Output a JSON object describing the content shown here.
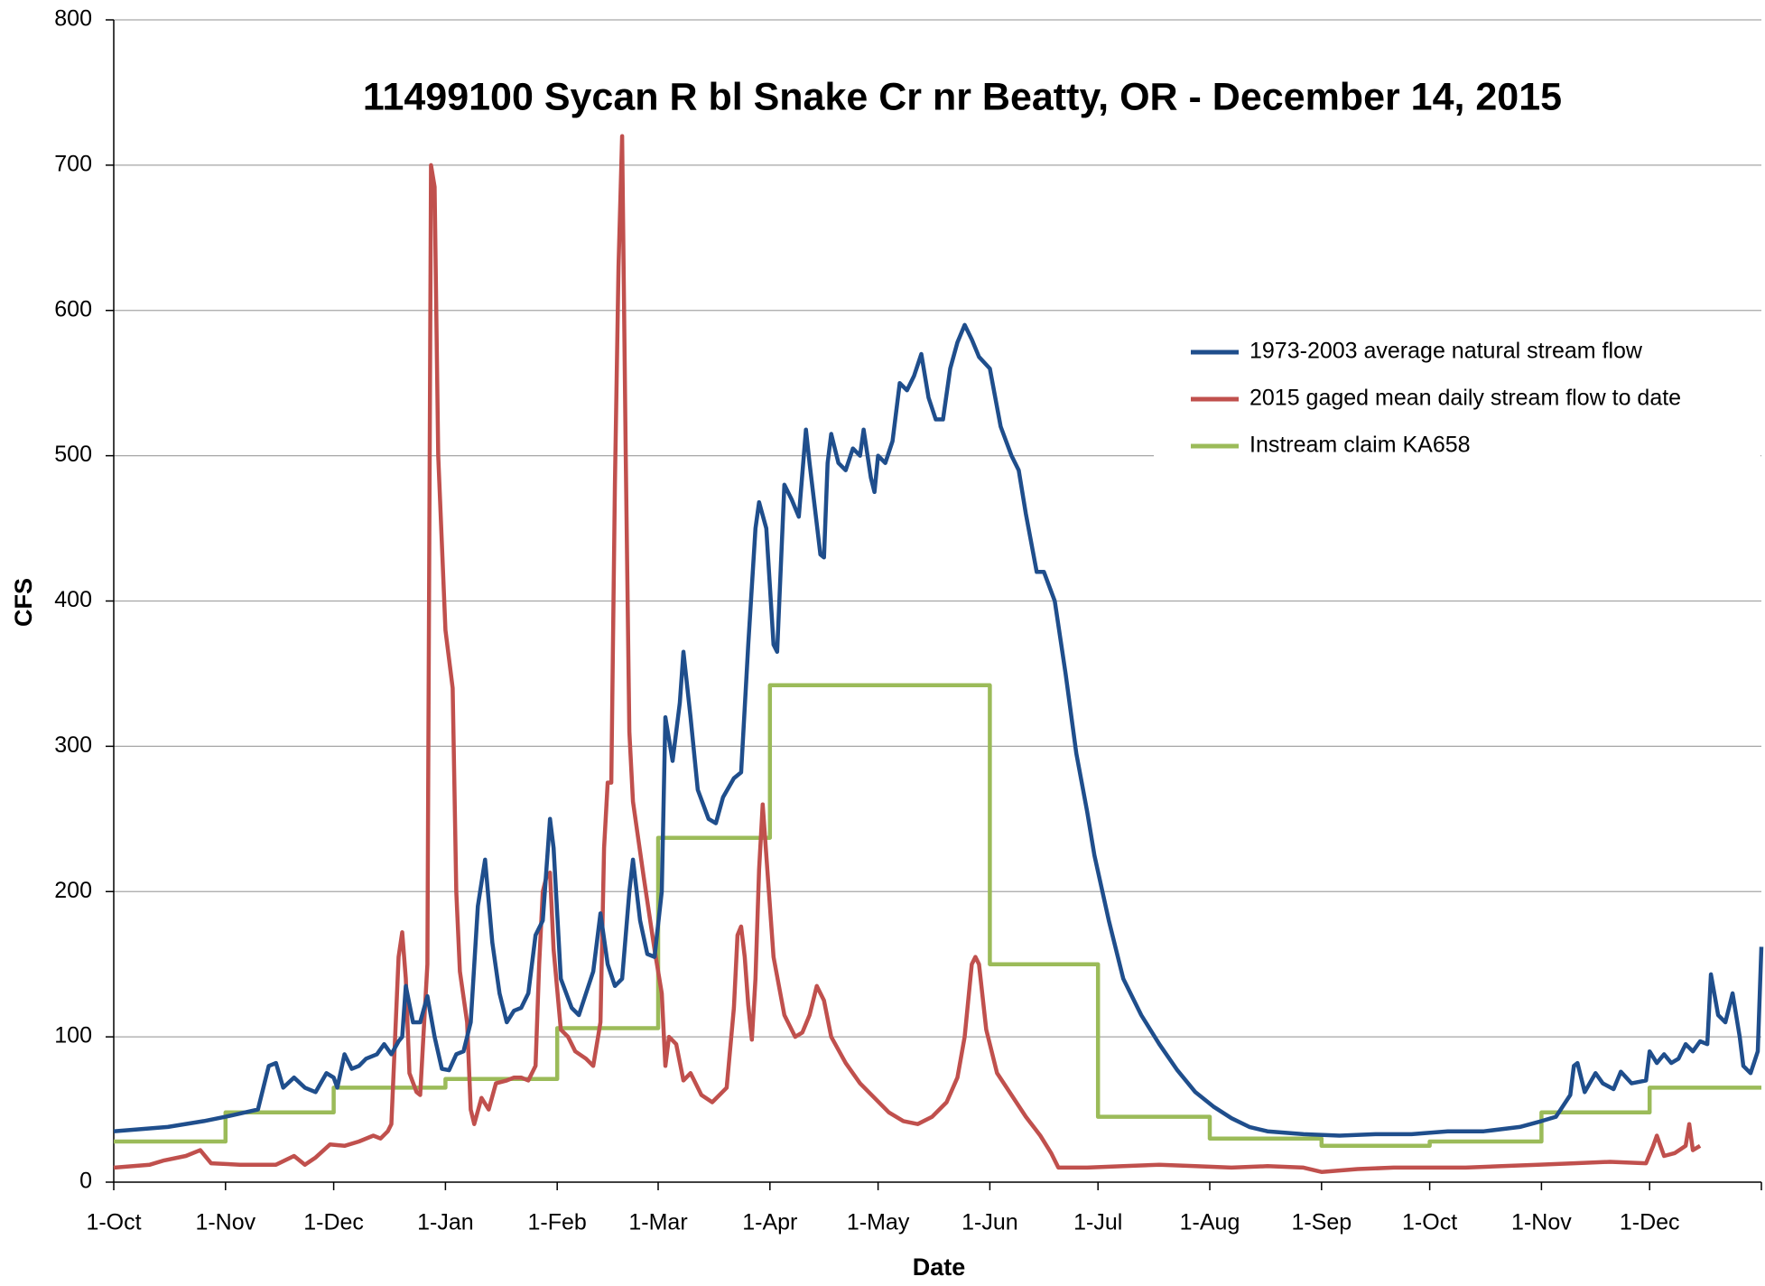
{
  "chart_data": {
    "type": "line",
    "title": "11499100 Sycan R bl Snake Cr nr Beatty, OR -  December 14, 2015",
    "xlabel": "Date",
    "ylabel": "CFS",
    "xlim": [
      0,
      457
    ],
    "ylim": [
      0,
      800
    ],
    "yticks": [
      0,
      100,
      200,
      300,
      400,
      500,
      600,
      700,
      800
    ],
    "xticks": [
      {
        "value": 0,
        "label": "1-Oct"
      },
      {
        "value": 31,
        "label": "1-Nov"
      },
      {
        "value": 61,
        "label": "1-Dec"
      },
      {
        "value": 92,
        "label": "1-Jan"
      },
      {
        "value": 123,
        "label": "1-Feb"
      },
      {
        "value": 151,
        "label": "1-Mar"
      },
      {
        "value": 182,
        "label": "1-Apr"
      },
      {
        "value": 212,
        "label": "1-May"
      },
      {
        "value": 243,
        "label": "1-Jun"
      },
      {
        "value": 273,
        "label": "1-Jul"
      },
      {
        "value": 304,
        "label": "1-Aug"
      },
      {
        "value": 335,
        "label": "1-Sep"
      },
      {
        "value": 365,
        "label": "1-Oct"
      },
      {
        "value": 396,
        "label": "1-Nov"
      },
      {
        "value": 426,
        "label": "1-Dec"
      }
    ],
    "grid": true,
    "legend": "upper right",
    "series": [
      {
        "name": "1973-2003 average natural stream flow",
        "color": "#1f4e8c",
        "x": [
          0,
          15,
          25,
          31,
          40,
          43,
          45,
          47,
          50,
          53,
          56,
          59,
          61,
          62,
          64,
          66,
          68,
          70,
          73,
          75,
          77,
          79,
          80,
          81,
          83,
          85,
          87,
          89,
          91,
          93,
          95,
          97,
          99,
          101,
          103,
          105,
          107,
          109,
          111,
          113,
          115,
          117,
          119,
          121,
          122,
          124,
          127,
          129,
          131,
          133,
          135,
          137,
          139,
          141,
          143,
          144,
          146,
          148,
          150,
          152,
          153,
          155,
          157,
          158,
          160,
          162,
          165,
          167,
          169,
          172,
          174,
          176,
          178,
          179,
          181,
          183,
          184,
          186,
          188,
          190,
          192,
          193,
          196,
          197,
          198,
          199,
          201,
          203,
          205,
          207,
          208,
          210,
          211,
          212,
          214,
          216,
          218,
          220,
          222,
          224,
          226,
          228,
          230,
          232,
          234,
          236,
          238,
          240,
          243,
          246,
          249,
          251,
          253,
          256,
          258,
          261,
          264,
          267,
          270,
          272,
          276,
          280,
          285,
          290,
          295,
          300,
          305,
          310,
          315,
          320,
          330,
          340,
          350,
          360,
          370,
          380,
          390,
          396,
          400,
          404,
          405,
          406,
          408,
          411,
          413,
          416,
          418,
          421,
          425,
          426,
          428,
          430,
          432,
          434,
          436,
          438,
          440,
          442,
          443,
          445,
          447,
          449,
          451,
          452,
          454,
          456,
          457
        ],
        "values": [
          35,
          38,
          42,
          45,
          50,
          80,
          82,
          65,
          72,
          65,
          62,
          75,
          72,
          65,
          88,
          78,
          80,
          85,
          88,
          95,
          88,
          97,
          100,
          135,
          110,
          110,
          128,
          100,
          78,
          77,
          88,
          90,
          110,
          190,
          222,
          165,
          130,
          110,
          118,
          120,
          130,
          170,
          180,
          250,
          230,
          140,
          120,
          115,
          130,
          145,
          185,
          150,
          135,
          140,
          200,
          222,
          180,
          157,
          155,
          200,
          320,
          290,
          330,
          365,
          320,
          270,
          250,
          247,
          265,
          278,
          282,
          370,
          450,
          468,
          450,
          370,
          365,
          480,
          470,
          458,
          518,
          495,
          432,
          430,
          495,
          515,
          495,
          490,
          505,
          500,
          518,
          485,
          475,
          500,
          495,
          510,
          550,
          545,
          555,
          570,
          540,
          525,
          525,
          560,
          578,
          590,
          580,
          568,
          560,
          520,
          500,
          490,
          460,
          420,
          420,
          400,
          350,
          295,
          255,
          225,
          180,
          140,
          115,
          95,
          77,
          62,
          52,
          44,
          38,
          35,
          33,
          32,
          33,
          33,
          35,
          35,
          38,
          42,
          45,
          60,
          80,
          82,
          62,
          75,
          68,
          64,
          76,
          68,
          70,
          90,
          82,
          88,
          82,
          85,
          95,
          90,
          97,
          95,
          143,
          115,
          110,
          130,
          100,
          80,
          75,
          90,
          162
        ]
      },
      {
        "name": "2015 gaged mean daily stream flow to date",
        "color": "#c0504d",
        "x": [
          0,
          10,
          14,
          20,
          24,
          27,
          35,
          45,
          50,
          53,
          56,
          60,
          64,
          68,
          72,
          74,
          76,
          77,
          79,
          80,
          81,
          82,
          84,
          85,
          87,
          88,
          89,
          90,
          92,
          94,
          95,
          96,
          98,
          99,
          100,
          102,
          104,
          106,
          109,
          111,
          113,
          115,
          117,
          118,
          119,
          120,
          121,
          122,
          124,
          126,
          128,
          131,
          133,
          135,
          136,
          137,
          138,
          139,
          140,
          141,
          142,
          143,
          144,
          147,
          150,
          152,
          153,
          154,
          156,
          158,
          160,
          163,
          166,
          168,
          170,
          172,
          173,
          174,
          175,
          176,
          177,
          178,
          179,
          180,
          181,
          183,
          186,
          189,
          191,
          193,
          195,
          197,
          199,
          203,
          207,
          211,
          215,
          219,
          223,
          227,
          231,
          234,
          236,
          238,
          239,
          240,
          242,
          245,
          249,
          253,
          257,
          260,
          262,
          270,
          280,
          290,
          300,
          310,
          320,
          330,
          335,
          345,
          355,
          365,
          375,
          385,
          395,
          405,
          415,
          425,
          427,
          428,
          430,
          433,
          436,
          437,
          438,
          440
        ],
        "values": [
          10,
          12,
          15,
          18,
          22,
          13,
          12,
          12,
          18,
          12,
          17,
          26,
          25,
          28,
          32,
          30,
          35,
          40,
          155,
          172,
          140,
          75,
          62,
          60,
          150,
          700,
          685,
          500,
          380,
          340,
          200,
          145,
          110,
          50,
          40,
          58,
          50,
          68,
          70,
          72,
          72,
          70,
          80,
          150,
          200,
          210,
          213,
          160,
          105,
          100,
          90,
          85,
          80,
          110,
          230,
          275,
          275,
          480,
          630,
          720,
          500,
          310,
          262,
          210,
          160,
          130,
          80,
          100,
          95,
          70,
          75,
          60,
          55,
          60,
          65,
          120,
          170,
          176,
          155,
          122,
          98,
          140,
          215,
          260,
          225,
          155,
          115,
          100,
          103,
          115,
          135,
          125,
          100,
          82,
          68,
          58,
          48,
          42,
          40,
          45,
          55,
          72,
          100,
          150,
          155,
          150,
          105,
          75,
          60,
          45,
          32,
          20,
          10,
          10,
          11,
          12,
          11,
          10,
          11,
          10,
          7,
          9,
          10,
          10,
          10,
          11,
          12,
          13,
          14,
          13,
          25,
          32,
          18,
          20,
          25,
          40,
          22,
          25
        ]
      },
      {
        "name": "Instream claim KA658",
        "color": "#9bbb59",
        "x": [
          0,
          31,
          31,
          61,
          61,
          92,
          92,
          123,
          123,
          151,
          151,
          182,
          182,
          243,
          243,
          273,
          273,
          304,
          304,
          335,
          335,
          365,
          365,
          396,
          396,
          426,
          426,
          457
        ],
        "values": [
          28,
          28,
          48,
          48,
          65,
          65,
          71,
          71,
          106,
          106,
          237,
          237,
          342,
          342,
          150,
          150,
          45,
          45,
          30,
          30,
          25,
          25,
          28,
          28,
          48,
          48,
          65,
          65
        ]
      }
    ]
  }
}
